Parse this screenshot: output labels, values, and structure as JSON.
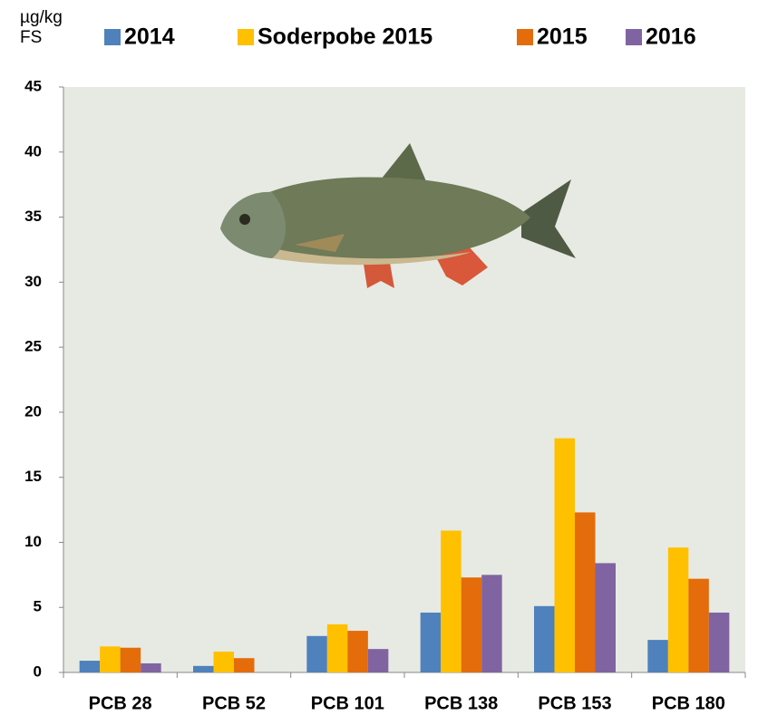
{
  "chart_data": {
    "type": "bar",
    "y_label_lines": [
      "µg/kg",
      "FS"
    ],
    "categories": [
      "PCB 28",
      "PCB 52",
      "PCB 101",
      "PCB 138",
      "PCB 153",
      "PCB 180"
    ],
    "series": [
      {
        "name": "2014",
        "color": "#4f81bd",
        "values": [
          0.9,
          0.5,
          2.8,
          4.6,
          5.1,
          2.5
        ]
      },
      {
        "name": "Soderpobe 2015",
        "color": "#ffc000",
        "values": [
          2.0,
          1.6,
          3.7,
          10.9,
          18.0,
          9.6
        ]
      },
      {
        "name": "2015",
        "color": "#e46c0a",
        "values": [
          1.9,
          1.1,
          3.2,
          7.3,
          12.3,
          7.2
        ]
      },
      {
        "name": "2016",
        "color": "#8064a2",
        "values": [
          0.7,
          null,
          1.8,
          7.5,
          8.4,
          4.6
        ]
      }
    ],
    "ylim": [
      0,
      45
    ],
    "yticks": [
      0,
      5,
      10,
      15,
      20,
      25,
      30,
      35,
      40,
      45
    ],
    "grid": false,
    "legend": "top"
  }
}
